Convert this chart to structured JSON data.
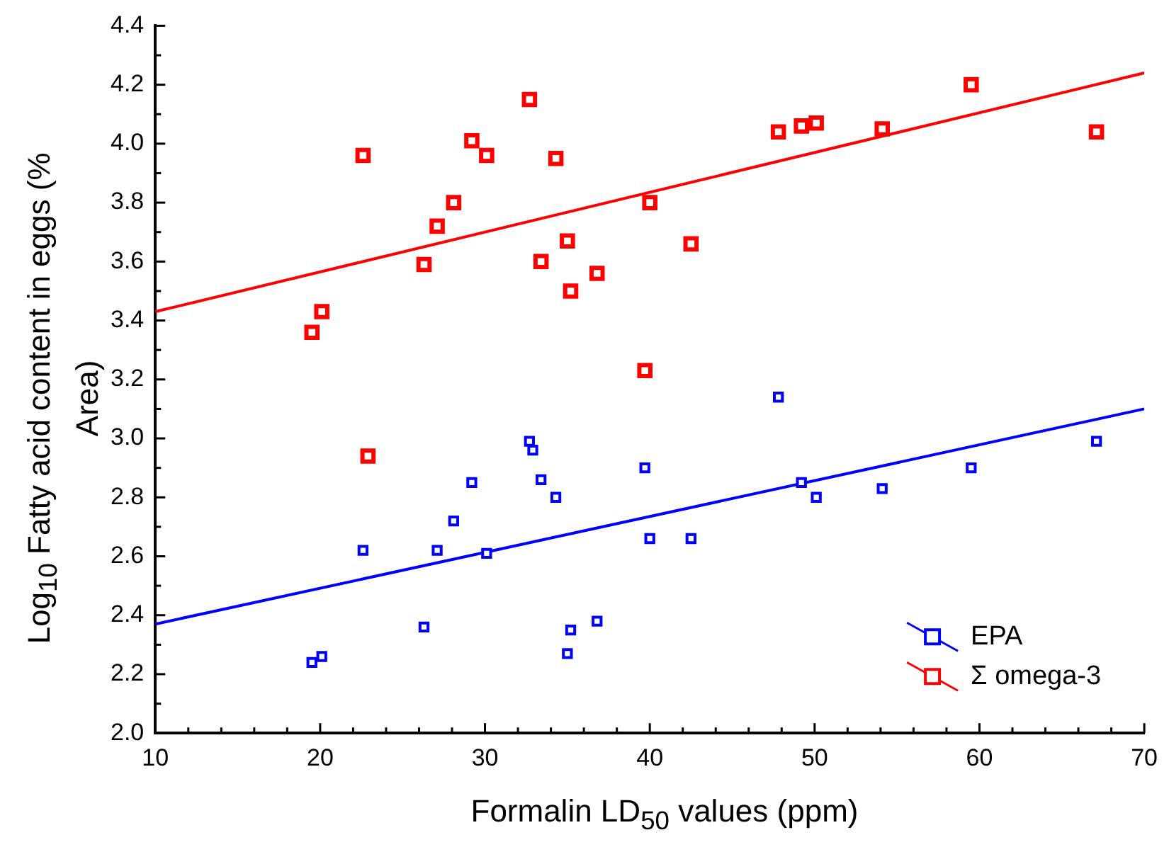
{
  "chart_data": {
    "type": "scatter",
    "xlabel": "Formalin LD$_{50}$ values (ppm)",
    "ylabel": "Log$_{10}$ Fatty acid content in eggs (% Area)",
    "xlim": [
      10,
      70
    ],
    "ylim": [
      2.0,
      4.4
    ],
    "xticks": [
      10,
      {
        "value": 12,
        "label": null
      },
      {
        "value": 14,
        "label": null
      },
      {
        "value": 16,
        "label": null
      },
      {
        "value": 18,
        "label": null
      },
      20,
      {
        "value": 22,
        "label": null
      },
      {
        "value": 24,
        "label": null
      },
      {
        "value": 26,
        "label": null
      },
      {
        "value": 28,
        "label": null
      },
      30,
      {
        "value": 32,
        "label": null
      },
      {
        "value": 34,
        "label": null
      },
      {
        "value": 36,
        "label": null
      },
      {
        "value": 38,
        "label": null
      },
      40,
      {
        "value": 42,
        "label": null
      },
      {
        "value": 44,
        "label": null
      },
      {
        "value": 46,
        "label": null
      },
      {
        "value": 48,
        "label": null
      },
      50,
      {
        "value": 52,
        "label": null
      },
      {
        "value": 54,
        "label": null
      },
      {
        "value": 56,
        "label": null
      },
      {
        "value": 58,
        "label": null
      },
      60,
      {
        "value": 62,
        "label": null
      },
      {
        "value": 64,
        "label": null
      },
      {
        "value": 66,
        "label": null
      },
      {
        "value": 68,
        "label": null
      },
      70
    ],
    "yticks": [
      {
        "value": 2.0,
        "label": "2.0"
      },
      {
        "value": 2.1,
        "label": null
      },
      {
        "value": 2.2,
        "label": "2.2"
      },
      {
        "value": 2.3,
        "label": null
      },
      {
        "value": 2.4,
        "label": "2.4"
      },
      {
        "value": 2.5,
        "label": null
      },
      {
        "value": 2.6,
        "label": "2.6"
      },
      {
        "value": 2.7,
        "label": null
      },
      {
        "value": 2.8,
        "label": "2.8"
      },
      {
        "value": 2.9,
        "label": null
      },
      {
        "value": 3.0,
        "label": "3.0"
      },
      {
        "value": 3.1,
        "label": null
      },
      {
        "value": 3.2,
        "label": "3.2"
      },
      {
        "value": 3.3,
        "label": null
      },
      {
        "value": 3.4,
        "label": "3.4"
      },
      {
        "value": 3.5,
        "label": null
      },
      {
        "value": 3.6,
        "label": "3.6"
      },
      {
        "value": 3.7,
        "label": null
      },
      {
        "value": 3.8,
        "label": "3.8"
      },
      {
        "value": 3.9,
        "label": null
      },
      {
        "value": 4.0,
        "label": "4.0"
      },
      {
        "value": 4.1,
        "label": null
      },
      {
        "value": 4.2,
        "label": "4.2"
      },
      {
        "value": 4.3,
        "label": null
      },
      {
        "value": 4.4,
        "label": "4.4"
      }
    ],
    "grid": false,
    "legend": "bottom right",
    "marker": "square",
    "series": [
      {
        "name": "EPA",
        "color": "#0000ff",
        "x": [
          19.5,
          20.1,
          22.6,
          26.3,
          27.1,
          28.1,
          29.2,
          30.1,
          32.7,
          32.9,
          33.4,
          34.3,
          35.0,
          35.2,
          36.8,
          39.7,
          40.0,
          42.5,
          47.8,
          49.2,
          50.1,
          54.1,
          59.5,
          67.1
        ],
        "values": [
          2.24,
          2.26,
          2.62,
          2.36,
          2.62,
          2.72,
          2.85,
          2.61,
          2.99,
          2.96,
          2.86,
          2.8,
          2.27,
          2.35,
          2.38,
          2.9,
          2.66,
          2.66,
          3.14,
          2.85,
          2.8,
          2.83,
          2.9,
          2.99
        ]
      },
      {
        "name": "Σ omega-3",
        "color": "#ff0000",
        "x": [
          19.5,
          20.1,
          22.6,
          22.9,
          26.3,
          27.1,
          28.1,
          29.2,
          30.1,
          32.7,
          33.4,
          34.3,
          35.0,
          35.2,
          36.8,
          39.7,
          40.0,
          42.5,
          47.8,
          49.2,
          50.1,
          54.1,
          59.5,
          67.1
        ],
        "values": [
          3.36,
          3.43,
          3.96,
          2.94,
          3.59,
          3.72,
          3.8,
          4.01,
          3.96,
          4.15,
          3.6,
          3.95,
          3.67,
          3.5,
          3.56,
          3.23,
          3.8,
          3.66,
          4.04,
          4.06,
          4.07,
          4.05,
          4.2,
          4.04
        ]
      },
      {
        "type": "line",
        "marker": "none",
        "color": "#0000ff",
        "x": [
          10,
          70
        ],
        "values": [
          2.37,
          3.1
        ]
      },
      {
        "type": "line",
        "marker": "none",
        "color": "#ff0000",
        "x": [
          10,
          70
        ],
        "values": [
          3.43,
          4.24
        ]
      }
    ]
  }
}
